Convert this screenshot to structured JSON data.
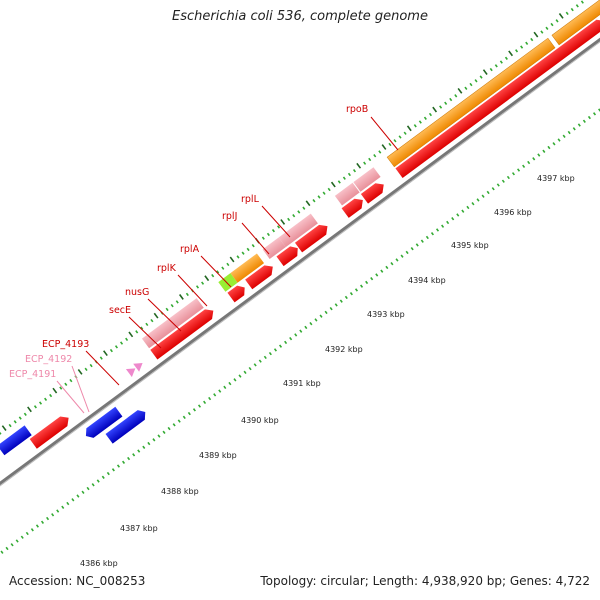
{
  "title": "Escherichia coli 536, complete genome",
  "footer": {
    "accession": "Accession: NC_008253",
    "summary": "Topology: circular; Length: 4,938,920 bp; Genes: 4,722"
  },
  "scale": {
    "unit": "kbp",
    "ticks": [
      "4386 kbp",
      "4387 kbp",
      "4388 kbp",
      "4389 kbp",
      "4390 kbp",
      "4391 kbp",
      "4392 kbp",
      "4393 kbp",
      "4394 kbp",
      "4395 kbp",
      "4396 kbp",
      "4397 kbp"
    ]
  },
  "genes": [
    {
      "name": "rpoB",
      "color": "#cc0000"
    },
    {
      "name": "rplL",
      "color": "#cc0000"
    },
    {
      "name": "rplJ",
      "color": "#cc0000"
    },
    {
      "name": "rplA",
      "color": "#cc0000"
    },
    {
      "name": "rplK",
      "color": "#cc0000"
    },
    {
      "name": "nusG",
      "color": "#cc0000"
    },
    {
      "name": "secE",
      "color": "#cc0000"
    },
    {
      "name": "ECP_4193",
      "color": "#cc0000"
    },
    {
      "name": "ECP_4192",
      "color": "#ee88aa"
    },
    {
      "name": "ECP_4191",
      "color": "#ee88aa"
    }
  ],
  "colors": {
    "cds_red": "#ee0000",
    "gene_pink": "#f0a0a8",
    "gene_orange": "#ff9900",
    "gene_green": "#99ee33",
    "gene_blue": "#1111dd",
    "backbone": "#888888",
    "tick_green": "#228822"
  }
}
